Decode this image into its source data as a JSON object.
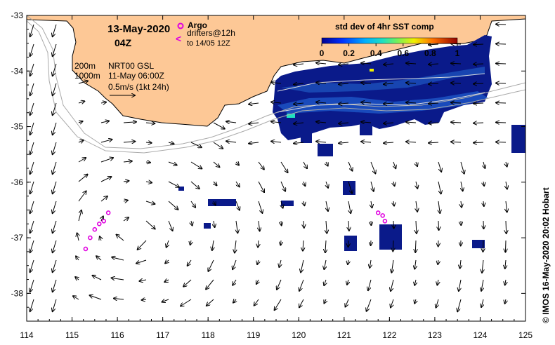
{
  "header": {
    "date": "13-May-2020",
    "hour": "04Z"
  },
  "legend_argo": {
    "title": "Argo",
    "line1": "drifters@12h",
    "line2": "to 14/05 12Z",
    "argo_color": "#e000e0",
    "arrow_glyph": "<"
  },
  "contours": {
    "label_200": "200m",
    "label_1000": "1000m"
  },
  "currents": {
    "source": "NRT00 GSL",
    "time": "11-May 06:00Z",
    "scale": "0.5m/s (1kt 24h)"
  },
  "colorbar": {
    "title": "std dev of 4hr SST comp",
    "ticks": [
      "0",
      "0.2",
      "0.4",
      "0.6",
      "0.8",
      "1"
    ]
  },
  "axes": {
    "lon_ticks": [
      "114",
      "115",
      "116",
      "117",
      "118",
      "119",
      "120",
      "121",
      "122",
      "123",
      "124",
      "125"
    ],
    "lat_ticks": [
      "-33",
      "-34",
      "-35",
      "-36",
      "-37",
      "-38"
    ]
  },
  "credit": "© IMOS 16-May-2020 20:02 Hobart",
  "colors": {
    "land": "#fdc896",
    "sst_dark": "#0a1a8a",
    "sst_mid": "#1f5fd0",
    "contour": "#aaaaaa"
  },
  "map_data": {
    "lon_range": [
      114,
      125
    ],
    "lat_range": [
      -38.5,
      -33
    ],
    "argo_track_a": [
      [
        115.3,
        -37.2
      ],
      [
        115.4,
        -37.0
      ],
      [
        115.5,
        -36.85
      ],
      [
        115.6,
        -36.75
      ],
      [
        115.7,
        -36.7
      ],
      [
        115.8,
        -36.55
      ]
    ],
    "argo_track_b": [
      [
        121.75,
        -36.55
      ],
      [
        121.85,
        -36.6
      ],
      [
        121.9,
        -36.7
      ]
    ],
    "sst_patches": [
      [
        120.15,
        -33.7,
        124.25,
        -35.2
      ],
      [
        124.5,
        -35.0,
        125.0,
        -35.5
      ],
      [
        121.3,
        -35.05,
        121.55,
        -35.3
      ],
      [
        120.4,
        -35.3,
        120.6,
        -35.5
      ],
      [
        121.9,
        -36.9,
        122.3,
        -37.3
      ],
      [
        121.5,
        -37.05,
        121.75,
        -37.25
      ],
      [
        121.75,
        -36.05,
        121.95,
        -36.25
      ],
      [
        120.8,
        -36.0,
        121.0,
        -36.15
      ],
      [
        119.1,
        -36.3,
        119.4,
        -36.45
      ],
      [
        118.3,
        -36.3,
        118.6,
        -36.45
      ],
      [
        123.7,
        -37.05,
        123.85,
        -37.2
      ]
    ]
  }
}
